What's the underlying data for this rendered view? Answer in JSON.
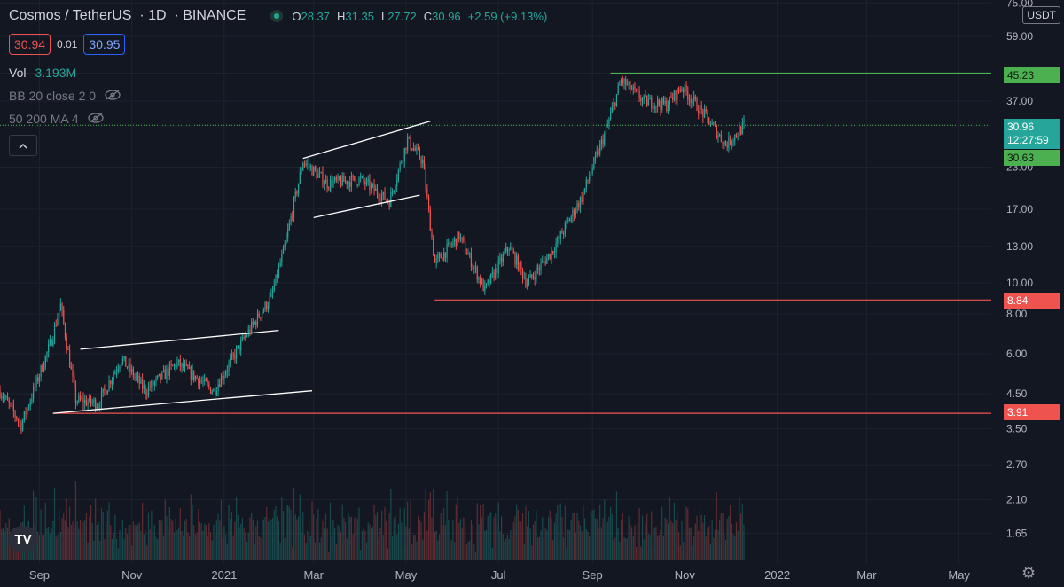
{
  "header": {
    "symbol": "Cosmos / TetherUS",
    "interval": "1D",
    "exchange": "BINANCE",
    "open_key": "O",
    "open": "28.37",
    "high_key": "H",
    "high": "31.35",
    "low_key": "L",
    "low": "27.72",
    "close_key": "C",
    "close": "30.96",
    "change": "+2.59 (+9.13%)"
  },
  "bid_ask": {
    "sell": "30.94",
    "spread": "0.01",
    "buy": "30.95"
  },
  "indicators": [
    {
      "name": "Vol",
      "value": "3.193M"
    },
    {
      "name": "BB 20 close 2 0"
    },
    {
      "name": "50 200 MA 4"
    }
  ],
  "price_scale": {
    "unit": "USDT"
  },
  "price_labels": {
    "hline_high": "45.23",
    "hline_mid": "8.84",
    "hline_low": "3.91",
    "current": "30.96",
    "countdown": "12:27:59",
    "current_close": "30.63"
  },
  "colors": {
    "up": "#26a69a",
    "down": "#ef5350",
    "background": "#131722",
    "grid": "#1e222d",
    "trend_line": "#ffffff",
    "resistance": "#4caf50",
    "support": "#ef5350"
  },
  "icons": {
    "logo": "tradingview-logo",
    "settings": "gear-icon",
    "hide": "eye-off-icon",
    "collapse": "chevron-up-icon"
  },
  "chart_data": {
    "type": "candlestick",
    "y_scale": "log",
    "y_ticks": [
      75.0,
      59.0,
      45.23,
      37.0,
      30.96,
      23.0,
      17.0,
      13.0,
      10.0,
      8.0,
      6.0,
      4.5,
      3.5,
      2.7,
      2.1,
      1.65
    ],
    "y_tick_labels": [
      "75.00",
      "59.00",
      "",
      "37.00",
      "",
      "23.00",
      "17.00",
      "13.00",
      "10.00",
      "8.00",
      "6.00",
      "4.50",
      "3.50",
      "2.70",
      "2.10",
      "1.65"
    ],
    "x_tick_labels": [
      "Sep",
      "Nov",
      "2021",
      "Mar",
      "May",
      "Jul",
      "Sep",
      "Nov",
      "2022",
      "Mar",
      "May"
    ],
    "x_tick_dates": [
      "2020-09-01",
      "2020-11-01",
      "2021-01-01",
      "2021-03-01",
      "2021-05-01",
      "2021-07-01",
      "2021-09-01",
      "2021-11-01",
      "2022-01-01",
      "2022-03-01",
      "2022-05-01"
    ],
    "x_range": [
      "2020-08-06",
      "2022-06-10"
    ],
    "key_prices": [
      {
        "date": "2020-08-06",
        "price": 4.6
      },
      {
        "date": "2020-08-20",
        "price": 3.6
      },
      {
        "date": "2020-09-08",
        "price": 6.4
      },
      {
        "date": "2020-09-15",
        "price": 8.5
      },
      {
        "date": "2020-09-25",
        "price": 4.3
      },
      {
        "date": "2020-10-10",
        "price": 4.2
      },
      {
        "date": "2020-10-25",
        "price": 5.8
      },
      {
        "date": "2020-11-10",
        "price": 4.6
      },
      {
        "date": "2020-12-01",
        "price": 5.6
      },
      {
        "date": "2020-12-25",
        "price": 4.6
      },
      {
        "date": "2021-01-15",
        "price": 6.8
      },
      {
        "date": "2021-02-01",
        "price": 9.0
      },
      {
        "date": "2021-02-10",
        "price": 13.0
      },
      {
        "date": "2021-02-22",
        "price": 24.0
      },
      {
        "date": "2021-03-10",
        "price": 20.5
      },
      {
        "date": "2021-04-01",
        "price": 21.0
      },
      {
        "date": "2021-04-20",
        "price": 18.0
      },
      {
        "date": "2021-05-02",
        "price": 28.0
      },
      {
        "date": "2021-05-12",
        "price": 24.0
      },
      {
        "date": "2021-05-20",
        "price": 11.5
      },
      {
        "date": "2021-06-05",
        "price": 14.0
      },
      {
        "date": "2021-06-22",
        "price": 9.5
      },
      {
        "date": "2021-07-08",
        "price": 13.0
      },
      {
        "date": "2021-07-20",
        "price": 10.0
      },
      {
        "date": "2021-08-05",
        "price": 12.5
      },
      {
        "date": "2021-08-25",
        "price": 18.5
      },
      {
        "date": "2021-09-10",
        "price": 30.0
      },
      {
        "date": "2021-09-20",
        "price": 43.0
      },
      {
        "date": "2021-10-05",
        "price": 37.0
      },
      {
        "date": "2021-10-20",
        "price": 36.0
      },
      {
        "date": "2021-10-30",
        "price": 41.0
      },
      {
        "date": "2021-11-15",
        "price": 33.0
      },
      {
        "date": "2021-11-28",
        "price": 27.0
      },
      {
        "date": "2021-12-10",
        "price": 30.96
      }
    ],
    "horizontal_levels": [
      45.23,
      31.1,
      8.84,
      3.91
    ],
    "trend_lines": [
      {
        "from": [
          "2020-09-10",
          3.91
        ],
        "to": [
          "2021-02-28",
          4.6
        ]
      },
      {
        "from": [
          "2020-09-28",
          6.2
        ],
        "to": [
          "2021-02-06",
          7.1
        ]
      },
      {
        "from": [
          "2021-02-22",
          24.5
        ],
        "to": [
          "2021-05-17",
          32.0
        ]
      },
      {
        "from": [
          "2021-03-01",
          16.0
        ],
        "to": [
          "2021-05-10",
          18.8
        ]
      }
    ],
    "volume": {
      "last": "3.193M"
    }
  }
}
